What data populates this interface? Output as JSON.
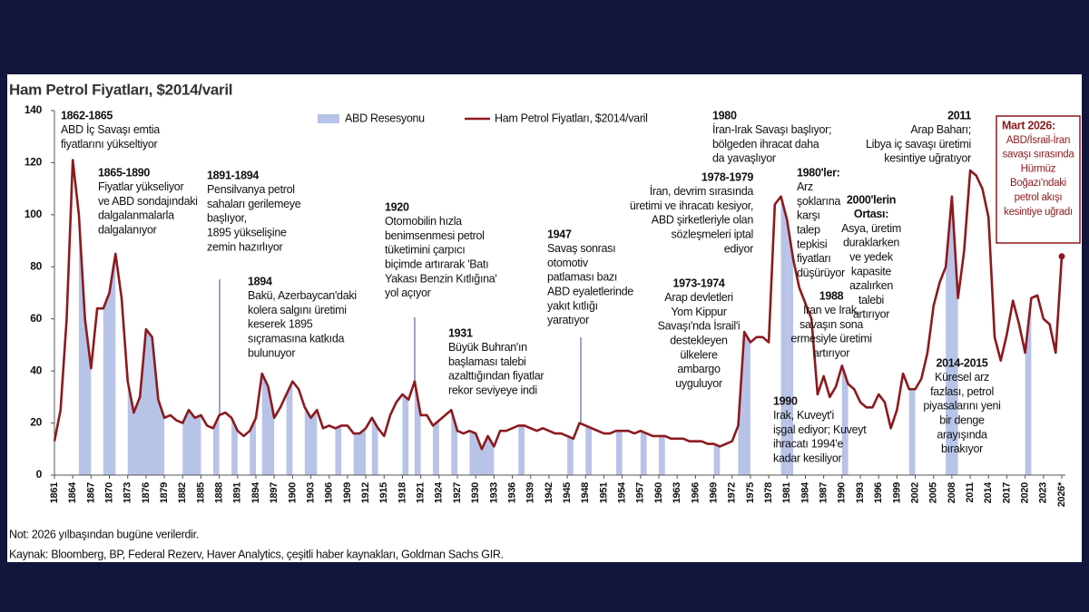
{
  "chart_data": {
    "type": "line",
    "title": "Ham Petrol Fiyatları, $2014/varil",
    "x": [
      1861,
      1862,
      1863,
      1864,
      1865,
      1866,
      1867,
      1868,
      1869,
      1870,
      1871,
      1872,
      1873,
      1874,
      1875,
      1876,
      1877,
      1878,
      1879,
      1880,
      1881,
      1882,
      1883,
      1884,
      1885,
      1886,
      1887,
      1888,
      1889,
      1890,
      1891,
      1892,
      1893,
      1894,
      1895,
      1896,
      1897,
      1898,
      1899,
      1900,
      1901,
      1902,
      1903,
      1904,
      1905,
      1906,
      1907,
      1908,
      1909,
      1910,
      1911,
      1912,
      1913,
      1914,
      1915,
      1916,
      1917,
      1918,
      1919,
      1920,
      1921,
      1922,
      1923,
      1924,
      1925,
      1926,
      1927,
      1928,
      1929,
      1930,
      1931,
      1932,
      1933,
      1934,
      1935,
      1936,
      1937,
      1938,
      1939,
      1940,
      1941,
      1942,
      1943,
      1944,
      1945,
      1946,
      1947,
      1948,
      1949,
      1950,
      1951,
      1952,
      1953,
      1954,
      1955,
      1956,
      1957,
      1958,
      1959,
      1960,
      1961,
      1962,
      1963,
      1964,
      1965,
      1966,
      1967,
      1968,
      1969,
      1970,
      1971,
      1972,
      1973,
      1974,
      1975,
      1976,
      1977,
      1978,
      1979,
      1980,
      1981,
      1982,
      1983,
      1984,
      1985,
      1986,
      1987,
      1988,
      1989,
      1990,
      1991,
      1992,
      1993,
      1994,
      1995,
      1996,
      1997,
      1998,
      1999,
      2000,
      2001,
      2002,
      2003,
      2004,
      2005,
      2006,
      2007,
      2008,
      2009,
      2010,
      2011,
      2012,
      2013,
      2014,
      2015,
      2016,
      2017,
      2018,
      2019,
      2020,
      2021,
      2022,
      2023,
      2024,
      2025,
      2026
    ],
    "series": [
      {
        "name": "Ham Petrol Fiyatları, $2014/varil",
        "color": "#8b1a1e",
        "values": [
          13,
          25,
          60,
          121,
          100,
          60,
          41,
          64,
          64,
          70,
          85,
          68,
          36,
          24,
          30,
          56,
          53,
          29,
          22,
          23,
          21,
          20,
          25,
          22,
          23,
          19,
          18,
          23,
          24,
          22,
          17,
          15,
          17,
          22,
          39,
          34,
          22,
          26,
          31,
          36,
          33,
          26,
          22,
          25,
          18,
          19,
          18,
          19,
          19,
          16,
          16,
          18,
          22,
          18,
          15,
          23,
          28,
          31,
          29,
          36,
          23,
          23,
          19,
          21,
          23,
          25,
          17,
          16,
          17,
          16,
          10,
          15,
          11,
          17,
          17,
          18,
          19,
          19,
          18,
          17,
          18,
          17,
          16,
          16,
          15,
          14,
          20,
          19,
          18,
          17,
          16,
          16,
          17,
          17,
          17,
          16,
          17,
          16,
          15,
          15,
          15,
          14,
          14,
          14,
          13,
          13,
          13,
          12,
          12,
          11,
          12,
          13,
          19,
          55,
          51,
          53,
          53,
          51,
          104,
          107,
          98,
          83,
          72,
          66,
          60,
          31,
          38,
          30,
          34,
          42,
          35,
          33,
          28,
          26,
          26,
          31,
          28,
          18,
          25,
          39,
          33,
          33,
          37,
          47,
          65,
          74,
          80,
          107,
          68,
          86,
          117,
          115,
          110,
          99,
          53,
          44,
          54,
          67,
          58,
          47,
          68,
          69,
          60,
          58,
          47,
          84
        ]
      }
    ],
    "recession_name": "ABD Resesyonu",
    "recession_color": "#b8c3e8",
    "recessions": [
      [
        1865,
        1867
      ],
      [
        1869,
        1871
      ],
      [
        1873,
        1879
      ],
      [
        1882,
        1885
      ],
      [
        1887,
        1888
      ],
      [
        1890,
        1891
      ],
      [
        1893,
        1894
      ],
      [
        1895,
        1897
      ],
      [
        1899,
        1900
      ],
      [
        1902,
        1904
      ],
      [
        1907,
        1908
      ],
      [
        1910,
        1912
      ],
      [
        1913,
        1914
      ],
      [
        1918,
        1919
      ],
      [
        1920,
        1921
      ],
      [
        1923,
        1924
      ],
      [
        1926,
        1927
      ],
      [
        1929,
        1933
      ],
      [
        1937,
        1938
      ],
      [
        1945,
        1946
      ],
      [
        1948,
        1949
      ],
      [
        1953,
        1954
      ],
      [
        1957,
        1958
      ],
      [
        1960,
        1961
      ],
      [
        1969,
        1970
      ],
      [
        1973,
        1975
      ],
      [
        1980,
        1981
      ],
      [
        1981,
        1982
      ],
      [
        1990,
        1991
      ],
      [
        2001,
        2002
      ],
      [
        2007,
        2009
      ],
      [
        2020,
        2021
      ]
    ],
    "xlim": [
      1861,
      2026
    ],
    "xticks": [
      1861,
      1864,
      1867,
      1870,
      1873,
      1876,
      1879,
      1882,
      1885,
      1888,
      1891,
      1894,
      1897,
      1900,
      1903,
      1906,
      1909,
      1912,
      1915,
      1918,
      1921,
      1924,
      1927,
      1930,
      1933,
      1936,
      1939,
      1942,
      1945,
      1948,
      1951,
      1954,
      1957,
      1960,
      1963,
      1966,
      1969,
      1972,
      1975,
      1978,
      1981,
      1984,
      1987,
      1990,
      1993,
      1996,
      1999,
      2002,
      2005,
      2008,
      2011,
      2014,
      2017,
      2020,
      2023,
      {
        "value": 2026,
        "label": "2026*"
      }
    ],
    "ylim": [
      0,
      140
    ],
    "yticks": [
      0,
      20,
      40,
      60,
      80,
      100,
      120,
      140
    ],
    "annotations": [
      {
        "heading": "1862-1865",
        "lines": [
          "ABD İç Savaşı emtia",
          "fiyatlarını yükseltiyor"
        ]
      },
      {
        "heading": "1865-1890",
        "lines": [
          "Fiyatlar yükseliyor",
          "ve ABD sondajındaki",
          "dalgalanmalarla",
          "dalgalanıyor"
        ]
      },
      {
        "heading": "1891-1894",
        "lines": [
          "Pensilvanya petrol",
          "sahaları gerilemeye",
          "başlıyor,",
          "1895 yükselişine",
          "zemin hazırlıyor"
        ]
      },
      {
        "heading": "1894",
        "lines": [
          "Bakü, Azerbaycan'daki",
          "kolera salgını üretimi",
          "keserek 1895",
          "sıçramasına katkıda",
          "bulunuyor"
        ]
      },
      {
        "heading": "1920",
        "lines": [
          "Otomobilin hızla",
          "benimsenmesi petrol",
          "tüketimini çarpıcı",
          "biçimde artırarak 'Batı",
          "Yakası Benzin Kıtlığına'",
          "yol açıyor"
        ]
      },
      {
        "heading": "1931",
        "lines": [
          "Büyük Buhran'ın",
          "başlaması talebi",
          "azalttığından fiyatlar",
          "rekor seviyeye indi"
        ]
      },
      {
        "heading": "1947",
        "lines": [
          "Savaş sonrası",
          "otomotiv",
          "patlaması bazı",
          "ABD eyaletlerinde",
          "yakıt kıtlığı",
          "yaratıyor"
        ]
      },
      {
        "heading": "1978-1979",
        "lines": [
          "İran, devrim sırasında",
          "üretimi ve ihracatı kesiyor,",
          "ABD şirketleriyle olan",
          "sözleşmeleri iptal",
          "ediyor"
        ]
      },
      {
        "heading": "1973-1974",
        "lines": [
          "Arap devletleri",
          "Yom Kippur",
          "Savaşı'nda İsrail'i",
          "destekleyen",
          "ülkelere",
          "ambargo",
          "uyguluyor"
        ]
      },
      {
        "heading": "1980",
        "lines": [
          "İran-Irak Savaşı başlıyor;",
          "bölgeden ihracat daha",
          "da yavaşlıyor"
        ]
      },
      {
        "heading": "1980'ler:",
        "lines": [
          "Arz",
          "şoklarına",
          "karşı",
          "talep",
          "tepkisi",
          "fiyatları",
          "düşürüyor"
        ]
      },
      {
        "heading": "1988",
        "lines": [
          "İran ve Irak,",
          "savaşın sona",
          "ermesiyle üretimi",
          "artırıyor"
        ]
      },
      {
        "heading": "1990",
        "lines": [
          "Irak, Kuveyt'i",
          "işgal ediyor; Kuveyt",
          "ihracatı 1994'e",
          "kadar kesiliyor"
        ]
      },
      {
        "heading": "2000'lerin",
        "lines": [
          "Ortası:",
          "Asya, üretim",
          "duraklarken",
          "ve yedek",
          "kapasite",
          "azalırken",
          "talebi",
          "artırıyor"
        ]
      },
      {
        "heading": "2011",
        "lines": [
          "Arap Baharı;",
          "Libya iç savaşı üretimi",
          "kesintiye uğratıyor"
        ]
      },
      {
        "heading": "2014-2015",
        "lines": [
          "Küresel arz",
          "fazlası, petrol",
          "piyasalarını yeni",
          "bir denge",
          "arayışında",
          "bırakıyor"
        ]
      },
      {
        "heading": "Mart 2026:",
        "lines": [
          "ABD/İsrail-İran",
          "savaşı sırasında",
          "Hürmüz",
          "Boğazı'ndaki",
          "petrol akışı",
          "kesintiye uğradı"
        ]
      }
    ],
    "note": "Not: 2026 yılbaşından bugüne verilerdir.",
    "source": "Kaynak: Bloomberg, BP, Federal Rezerv, Haver Analytics, çeşitli haber kaynakları, Goldman Sachs GIR."
  }
}
